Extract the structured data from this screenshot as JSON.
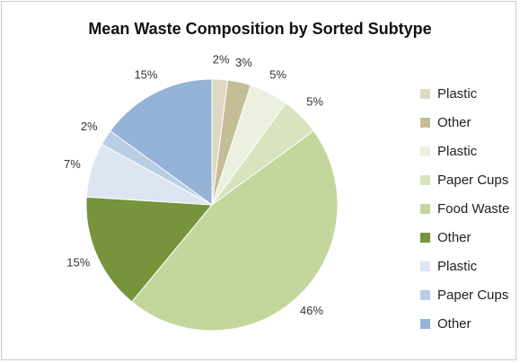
{
  "chart_data": {
    "type": "pie",
    "title": "Mean Waste Composition by Sorted Subtype",
    "legend_position": "right",
    "start_angle_deg": 0,
    "direction": "clockwise",
    "slices": [
      {
        "label": "Plastic",
        "value": 2,
        "value_label": "2%",
        "color": "#ddd9c3"
      },
      {
        "label": "Other",
        "value": 3,
        "value_label": "3%",
        "color": "#c4bd97"
      },
      {
        "label": "Plastic",
        "value": 5,
        "value_label": "5%",
        "color": "#ebf1de"
      },
      {
        "label": "Paper Cups",
        "value": 5,
        "value_label": "5%",
        "color": "#d7e4bd"
      },
      {
        "label": "Food Waste",
        "value": 46,
        "value_label": "46%",
        "color": "#c3d69b"
      },
      {
        "label": "Other",
        "value": 15,
        "value_label": "15%",
        "color": "#77933c"
      },
      {
        "label": "Plastic",
        "value": 7,
        "value_label": "7%",
        "color": "#dce6f2"
      },
      {
        "label": "Paper Cups",
        "value": 2,
        "value_label": "2%",
        "color": "#b9cde5"
      },
      {
        "label": "Other",
        "value": 15,
        "value_label": "15%",
        "color": "#95b3d7"
      }
    ]
  }
}
